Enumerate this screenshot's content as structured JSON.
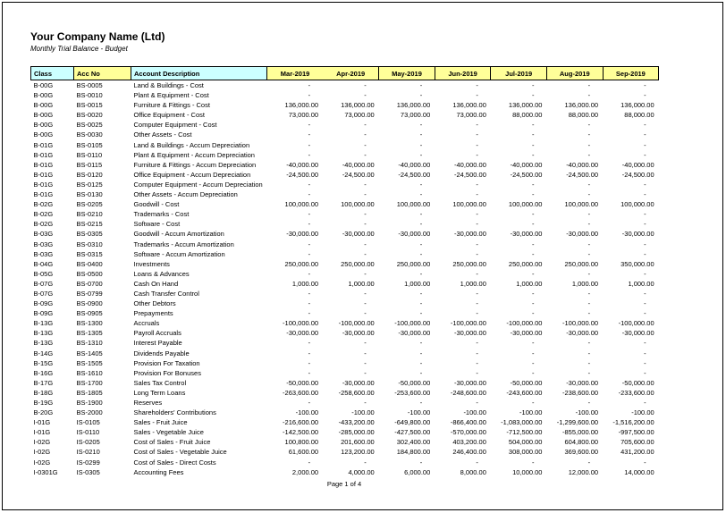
{
  "page": {
    "company_name": "Your Company Name (Ltd)",
    "report_title": "Monthly Trial Balance - Budget",
    "page_footer": "Page 1 of 4"
  },
  "colors": {
    "header_cyan": "#CCFFFF",
    "header_yellow": "#FFFF99",
    "border": "#000000"
  },
  "table": {
    "headers": {
      "class": "Class",
      "acc_no": "Acc No",
      "description": "Account Description",
      "months": [
        "Mar-2019",
        "Apr-2019",
        "May-2019",
        "Jun-2019",
        "Jul-2019",
        "Aug-2019",
        "Sep-2019"
      ]
    },
    "rows": [
      {
        "class": "B-00G",
        "acc_no": "BS-0005",
        "description": "Land & Buildings - Cost",
        "values": [
          "-",
          "-",
          "-",
          "-",
          "-",
          "-",
          "-"
        ]
      },
      {
        "class": "B-00G",
        "acc_no": "BS-0010",
        "description": "Plant & Equipment - Cost",
        "values": [
          "-",
          "-",
          "-",
          "-",
          "-",
          "-",
          "-"
        ]
      },
      {
        "class": "B-00G",
        "acc_no": "BS-0015",
        "description": "Furniture & Fittings - Cost",
        "values": [
          "136,000.00",
          "136,000.00",
          "136,000.00",
          "136,000.00",
          "136,000.00",
          "136,000.00",
          "136,000.00"
        ]
      },
      {
        "class": "B-00G",
        "acc_no": "BS-0020",
        "description": "Office Equipment - Cost",
        "values": [
          "73,000.00",
          "73,000.00",
          "73,000.00",
          "73,000.00",
          "88,000.00",
          "88,000.00",
          "88,000.00"
        ]
      },
      {
        "class": "B-00G",
        "acc_no": "BS-0025",
        "description": "Computer Equipment - Cost",
        "values": [
          "-",
          "-",
          "-",
          "-",
          "-",
          "-",
          "-"
        ]
      },
      {
        "class": "B-00G",
        "acc_no": "BS-0030",
        "description": "Other Assets - Cost",
        "values": [
          "-",
          "-",
          "-",
          "-",
          "-",
          "-",
          "-"
        ]
      },
      {
        "class": "B-01G",
        "acc_no": "BS-0105",
        "description": "Land & Buildings - Accum Depreciation",
        "values": [
          "-",
          "-",
          "-",
          "-",
          "-",
          "-",
          "-"
        ]
      },
      {
        "class": "B-01G",
        "acc_no": "BS-0110",
        "description": "Plant & Equipment - Accum Depreciation",
        "values": [
          "-",
          "-",
          "-",
          "-",
          "-",
          "-",
          "-"
        ]
      },
      {
        "class": "B-01G",
        "acc_no": "BS-0115",
        "description": "Furniture & Fittings - Accum Depreciation",
        "values": [
          "-40,000.00",
          "-40,000.00",
          "-40,000.00",
          "-40,000.00",
          "-40,000.00",
          "-40,000.00",
          "-40,000.00"
        ]
      },
      {
        "class": "B-01G",
        "acc_no": "BS-0120",
        "description": "Office Equipment -  Accum Depreciation",
        "values": [
          "-24,500.00",
          "-24,500.00",
          "-24,500.00",
          "-24,500.00",
          "-24,500.00",
          "-24,500.00",
          "-24,500.00"
        ]
      },
      {
        "class": "B-01G",
        "acc_no": "BS-0125",
        "description": "Computer Equipment -  Accum Depreciation",
        "values": [
          "-",
          "-",
          "-",
          "-",
          "-",
          "-",
          "-"
        ]
      },
      {
        "class": "B-01G",
        "acc_no": "BS-0130",
        "description": "Other Assets -  Accum Depreciation",
        "values": [
          "-",
          "-",
          "-",
          "-",
          "-",
          "-",
          "-"
        ]
      },
      {
        "class": "B-02G",
        "acc_no": "BS-0205",
        "description": "Goodwill - Cost",
        "values": [
          "100,000.00",
          "100,000.00",
          "100,000.00",
          "100,000.00",
          "100,000.00",
          "100,000.00",
          "100,000.00"
        ]
      },
      {
        "class": "B-02G",
        "acc_no": "BS-0210",
        "description": "Trademarks - Cost",
        "values": [
          "-",
          "-",
          "-",
          "-",
          "-",
          "-",
          "-"
        ]
      },
      {
        "class": "B-02G",
        "acc_no": "BS-0215",
        "description": "Software - Cost",
        "values": [
          "-",
          "-",
          "-",
          "-",
          "-",
          "-",
          "-"
        ]
      },
      {
        "class": "B-03G",
        "acc_no": "BS-0305",
        "description": "Goodwill - Accum Amortization",
        "values": [
          "-30,000.00",
          "-30,000.00",
          "-30,000.00",
          "-30,000.00",
          "-30,000.00",
          "-30,000.00",
          "-30,000.00"
        ]
      },
      {
        "class": "B-03G",
        "acc_no": "BS-0310",
        "description": "Trademarks - Accum Amortization",
        "values": [
          "-",
          "-",
          "-",
          "-",
          "-",
          "-",
          "-"
        ]
      },
      {
        "class": "B-03G",
        "acc_no": "BS-0315",
        "description": "Software - Accum Amortization",
        "values": [
          "-",
          "-",
          "-",
          "-",
          "-",
          "-",
          "-"
        ]
      },
      {
        "class": "B-04G",
        "acc_no": "BS-0400",
        "description": "Investments",
        "values": [
          "250,000.00",
          "250,000.00",
          "250,000.00",
          "250,000.00",
          "250,000.00",
          "250,000.00",
          "350,000.00"
        ]
      },
      {
        "class": "B-05G",
        "acc_no": "BS-0500",
        "description": "Loans & Advances",
        "values": [
          "-",
          "-",
          "-",
          "-",
          "-",
          "-",
          "-"
        ]
      },
      {
        "class": "B-07G",
        "acc_no": "BS-0700",
        "description": "Cash On Hand",
        "values": [
          "1,000.00",
          "1,000.00",
          "1,000.00",
          "1,000.00",
          "1,000.00",
          "1,000.00",
          "1,000.00"
        ]
      },
      {
        "class": "B-07G",
        "acc_no": "BS-0799",
        "description": "Cash Transfer Control",
        "values": [
          "-",
          "-",
          "-",
          "-",
          "-",
          "-",
          "-"
        ]
      },
      {
        "class": "B-09G",
        "acc_no": "BS-0900",
        "description": "Other Debtors",
        "values": [
          "-",
          "-",
          "-",
          "-",
          "-",
          "-",
          "-"
        ]
      },
      {
        "class": "B-09G",
        "acc_no": "BS-0905",
        "description": "Prepayments",
        "values": [
          "-",
          "-",
          "-",
          "-",
          "-",
          "-",
          "-"
        ]
      },
      {
        "class": "B-13G",
        "acc_no": "BS-1300",
        "description": "Accruals",
        "values": [
          "-100,000.00",
          "-100,000.00",
          "-100,000.00",
          "-100,000.00",
          "-100,000.00",
          "-100,000.00",
          "-100,000.00"
        ]
      },
      {
        "class": "B-13G",
        "acc_no": "BS-1305",
        "description": "Payroll Accruals",
        "values": [
          "-30,000.00",
          "-30,000.00",
          "-30,000.00",
          "-30,000.00",
          "-30,000.00",
          "-30,000.00",
          "-30,000.00"
        ]
      },
      {
        "class": "B-13G",
        "acc_no": "BS-1310",
        "description": "Interest Payable",
        "values": [
          "-",
          "-",
          "-",
          "-",
          "-",
          "-",
          "-"
        ]
      },
      {
        "class": "B-14G",
        "acc_no": "BS-1405",
        "description": "Dividends Payable",
        "values": [
          "-",
          "-",
          "-",
          "-",
          "-",
          "-",
          "-"
        ]
      },
      {
        "class": "B-15G",
        "acc_no": "BS-1505",
        "description": "Provision For Taxation",
        "values": [
          "-",
          "-",
          "-",
          "-",
          "-",
          "-",
          "-"
        ]
      },
      {
        "class": "B-16G",
        "acc_no": "BS-1610",
        "description": "Provision For Bonuses",
        "values": [
          "-",
          "-",
          "-",
          "-",
          "-",
          "-",
          "-"
        ]
      },
      {
        "class": "B-17G",
        "acc_no": "BS-1700",
        "description": "Sales Tax Control",
        "values": [
          "-50,000.00",
          "-30,000.00",
          "-50,000.00",
          "-30,000.00",
          "-50,000.00",
          "-30,000.00",
          "-50,000.00"
        ]
      },
      {
        "class": "B-18G",
        "acc_no": "BS-1805",
        "description": "Long Term Loans",
        "values": [
          "-263,600.00",
          "-258,600.00",
          "-253,600.00",
          "-248,600.00",
          "-243,600.00",
          "-238,600.00",
          "-233,600.00"
        ]
      },
      {
        "class": "B-19G",
        "acc_no": "BS-1900",
        "description": "Reserves",
        "values": [
          "-",
          "-",
          "-",
          "-",
          "-",
          "-",
          "-"
        ]
      },
      {
        "class": "B-20G",
        "acc_no": "BS-2000",
        "description": "Shareholders' Contributions",
        "values": [
          "-100.00",
          "-100.00",
          "-100.00",
          "-100.00",
          "-100.00",
          "-100.00",
          "-100.00"
        ]
      },
      {
        "class": "I-01G",
        "acc_no": "IS-0105",
        "description": "Sales - Fruit Juice",
        "values": [
          "-216,600.00",
          "-433,200.00",
          "-649,800.00",
          "-866,400.00",
          "-1,083,000.00",
          "-1,299,600.00",
          "-1,516,200.00"
        ]
      },
      {
        "class": "I-01G",
        "acc_no": "IS-0110",
        "description": "Sales - Vegetable Juice",
        "values": [
          "-142,500.00",
          "-285,000.00",
          "-427,500.00",
          "-570,000.00",
          "-712,500.00",
          "-855,000.00",
          "-997,500.00"
        ]
      },
      {
        "class": "I-02G",
        "acc_no": "IS-0205",
        "description": "Cost of Sales - Fruit Juice",
        "values": [
          "100,800.00",
          "201,600.00",
          "302,400.00",
          "403,200.00",
          "504,000.00",
          "604,800.00",
          "705,600.00"
        ]
      },
      {
        "class": "I-02G",
        "acc_no": "IS-0210",
        "description": "Cost of Sales - Vegetable Juice",
        "values": [
          "61,600.00",
          "123,200.00",
          "184,800.00",
          "246,400.00",
          "308,000.00",
          "369,600.00",
          "431,200.00"
        ]
      },
      {
        "class": "I-02G",
        "acc_no": "IS-0299",
        "description": "Cost of Sales - Direct Costs",
        "values": [
          "-",
          "-",
          "-",
          "-",
          "-",
          "-",
          "-"
        ]
      },
      {
        "class": "I-0301G",
        "acc_no": "IS-0305",
        "description": "Accounting Fees",
        "values": [
          "2,000.00",
          "4,000.00",
          "6,000.00",
          "8,000.00",
          "10,000.00",
          "12,000.00",
          "14,000.00"
        ]
      }
    ]
  }
}
